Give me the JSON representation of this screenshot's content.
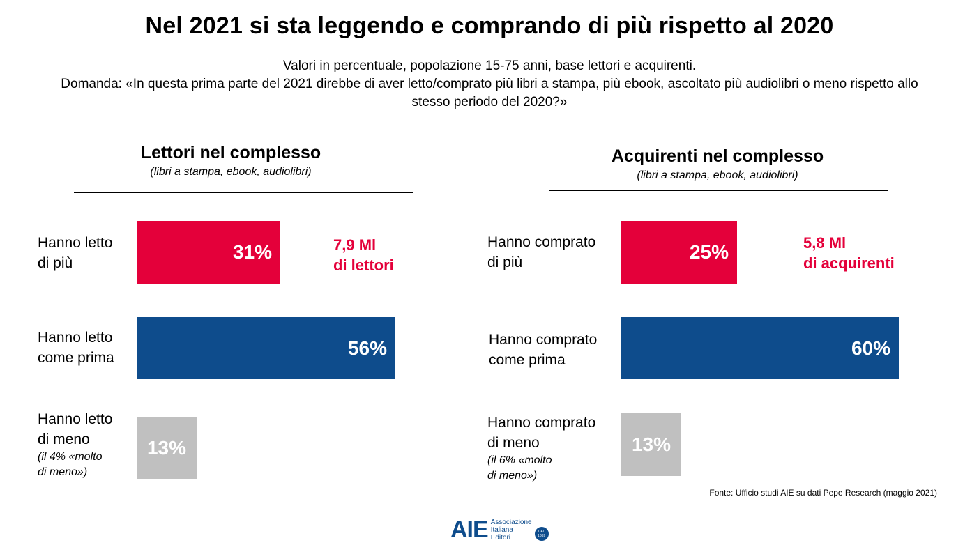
{
  "title": "Nel 2021 si sta leggendo e comprando di più rispetto al 2020",
  "subtitle": {
    "line1": "Valori in percentuale, popolazione 15-75 anni, base lettori e acquirenti.",
    "line2": "Domanda: «In questa prima parte del 2021 direbbe di aver letto/comprato più libri a stampa, più ebook, ascoltato più audiolibri o meno rispetto allo stesso periodo del 2020?»"
  },
  "colors": {
    "more": "#e4003a",
    "same": "#0e4c8c",
    "less": "#c0c0c0",
    "callout": "#e4003a"
  },
  "chart_data": [
    {
      "type": "bar",
      "orientation": "horizontal",
      "title": "Lettori nel complesso",
      "subtitle": "(libri a stampa, ebook, audiolibri)",
      "categories": [
        {
          "label1": "Hanno letto",
          "label2": "di più",
          "value": 31,
          "display": "31%",
          "color_key": "more",
          "callout1": "7,9 Ml",
          "callout2": "di lettori"
        },
        {
          "label1": "Hanno letto",
          "label2": "come prima",
          "value": 56,
          "display": "56%",
          "color_key": "same"
        },
        {
          "label1": "Hanno letto",
          "label2": "di meno",
          "value": 13,
          "display": "13%",
          "color_key": "less",
          "note1": "(il 4% «molto",
          "note2": "di meno»)"
        }
      ]
    },
    {
      "type": "bar",
      "orientation": "horizontal",
      "title": "Acquirenti nel complesso",
      "subtitle": "(libri a stampa, ebook, audiolibri)",
      "categories": [
        {
          "label1": "Hanno comprato",
          "label2": "di più",
          "value": 25,
          "display": "25%",
          "color_key": "more",
          "callout1": "5,8 Ml",
          "callout2": "di acquirenti"
        },
        {
          "label1": "Hanno comprato",
          "label2": "come prima",
          "value": 60,
          "display": "60%",
          "color_key": "same"
        },
        {
          "label1": "Hanno comprato",
          "label2": "di meno",
          "value": 13,
          "display": "13%",
          "color_key": "less",
          "note1": "(il 6% «molto",
          "note2": "di meno»)"
        }
      ]
    }
  ],
  "source": "Fonte: Ufficio studi AIE su dati Pepe Research (maggio 2021)",
  "logo": {
    "mark": "AIE",
    "line1": "Associazione",
    "line2": "Italiana",
    "line3": "Editori",
    "badge1": "DAL",
    "badge2": "1869"
  }
}
